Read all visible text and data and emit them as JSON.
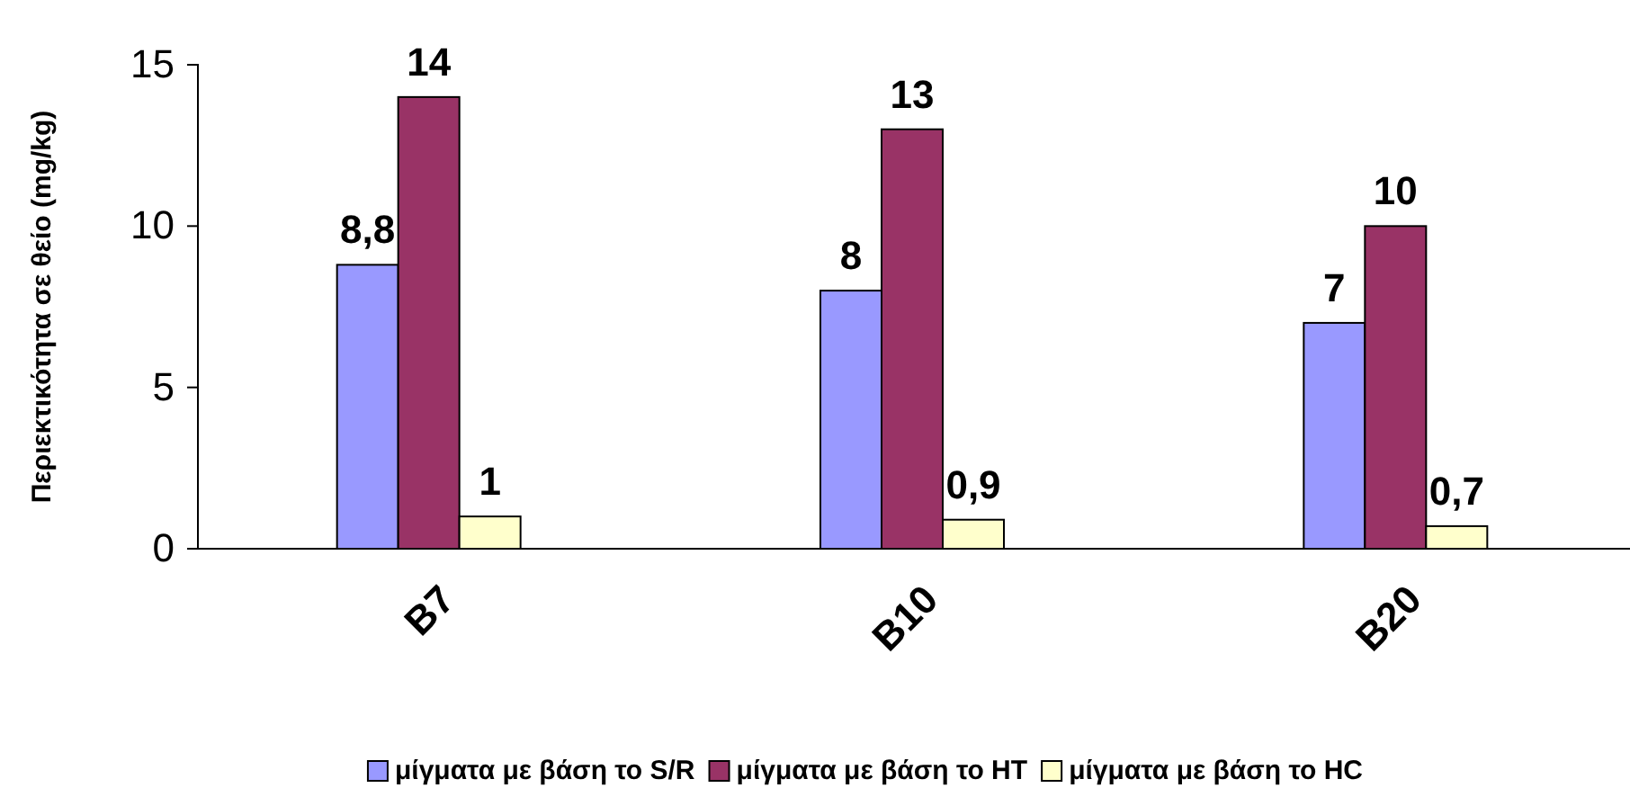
{
  "chart_data": {
    "type": "bar",
    "ylabel": "Περιεκτικότητα σε θείο (mg/kg)",
    "categories": [
      "B7",
      "B10",
      "B20"
    ],
    "series": [
      {
        "name": "μίγματα με βάση το S/R",
        "color": "#9999ff",
        "values": [
          8.8,
          8,
          7
        ],
        "value_labels": [
          "8,8",
          "8",
          "7"
        ]
      },
      {
        "name": "μίγματα με βάση το HT",
        "color": "#993366",
        "values": [
          14,
          13,
          10
        ],
        "value_labels": [
          "14",
          "13",
          "10"
        ]
      },
      {
        "name": "μίγματα με βάση το HC",
        "color": "#ffffcc",
        "values": [
          1,
          0.9,
          0.7
        ],
        "value_labels": [
          "1",
          "0,9",
          "0,7"
        ]
      }
    ],
    "ylim": [
      0,
      15
    ],
    "yticks": [
      0,
      5,
      10,
      15
    ],
    "grid": false,
    "legend": "bottom"
  }
}
